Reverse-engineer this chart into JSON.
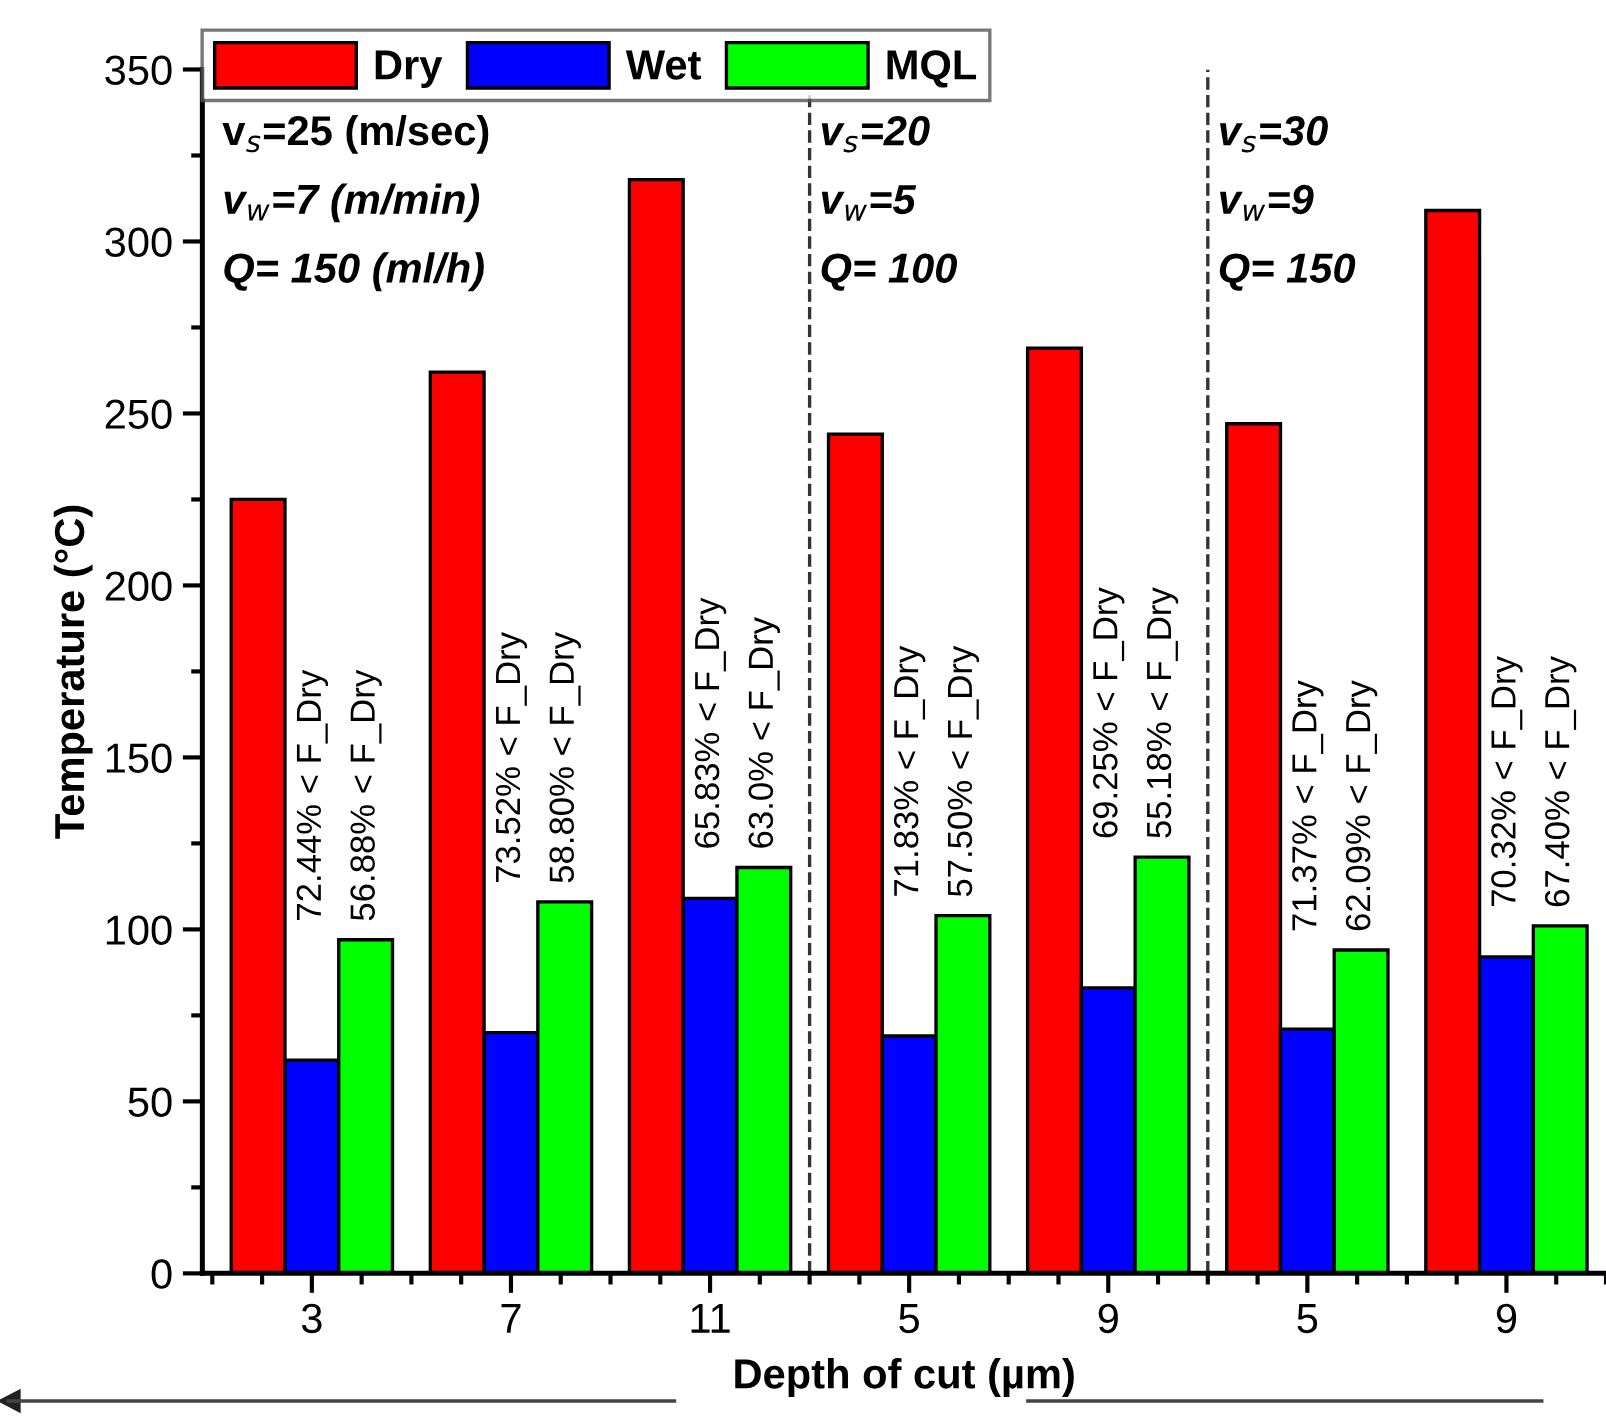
{
  "chart_data": {
    "type": "bar",
    "xlabel": "Depth of cut (µm)",
    "ylabel": "Temperature (°C)",
    "categories": [
      "3",
      "7",
      "11",
      "5",
      "9",
      "5",
      "9"
    ],
    "series": [
      {
        "name": "Dry",
        "color": "#ff0000",
        "values": [
          225,
          262,
          318,
          244,
          269,
          247,
          309
        ]
      },
      {
        "name": "Wet",
        "color": "#0000ff",
        "values": [
          62,
          70,
          109,
          69,
          83,
          71,
          92
        ]
      },
      {
        "name": "MQL",
        "color": "#00ff00",
        "values": [
          97,
          108,
          118,
          104,
          121,
          94,
          101
        ]
      }
    ],
    "ylim": [
      0,
      350
    ],
    "yticks": [
      0,
      50,
      100,
      150,
      200,
      250,
      300,
      350
    ],
    "grid": false,
    "legend": "top left",
    "annotations": [
      "v$_{s}$=25 (m/sec)",
      "v$_{w}$=7 (m/min)",
      "Q= 150 (ml/h)",
      "v$_{s}$=20",
      "v$_{w}$=5",
      "Q= 100",
      "v$_{s}$=30",
      "v$_{w}$=9",
      "Q= 150",
      "72.44% < F_Dry",
      "56.88% < F_Dry",
      "73.52% < F_Dry",
      "58.80% < F_Dry",
      "65.83% < F_Dry",
      "63.0% < F_Dry",
      "71.83% < F_Dry",
      "57.50% < F_Dry",
      "69.25% < F_Dry",
      "55.18% < F_Dry",
      "71.37% < F_Dry",
      "62.09% < F_Dry",
      "70.32% < F_Dry",
      "67.40% < F_Dry"
    ]
  }
}
